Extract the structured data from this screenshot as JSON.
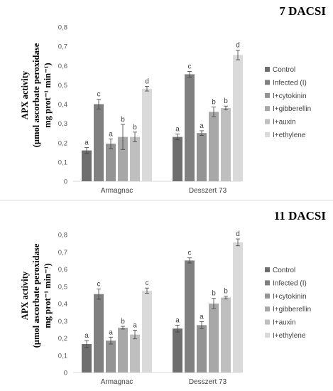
{
  "chart_data": [
    {
      "type": "bar",
      "title": "7 DACSI",
      "ylabel": [
        "APX activity",
        "(µmol ascorbate peroxidase",
        "mg prot⁻¹ min⁻¹)"
      ],
      "yticks": [
        "0",
        "0,1",
        "0,2",
        "0,3",
        "0,4",
        "0,5",
        "0,6",
        "0,7",
        "0,8"
      ],
      "ylim": [
        0,
        0.8
      ],
      "grid": false,
      "legend_position": "right",
      "categories": [
        "Armagnac",
        "Desszert 73"
      ],
      "series": [
        {
          "name": "Control",
          "color": "#6e6e6e",
          "values": [
            0.16,
            0.23
          ],
          "errors": [
            0.015,
            0.015
          ],
          "labels": [
            "a",
            "a"
          ]
        },
        {
          "name": "Infected (I)",
          "color": "#808080",
          "values": [
            0.4,
            0.555
          ],
          "errors": [
            0.025,
            0.015
          ],
          "labels": [
            "c",
            "c"
          ]
        },
        {
          "name": "I+cytokinin",
          "color": "#949494",
          "values": [
            0.195,
            0.25
          ],
          "errors": [
            0.025,
            0.012
          ],
          "labels": [
            "a",
            "a"
          ]
        },
        {
          "name": "I+gibberellin",
          "color": "#a8a8a8",
          "values": [
            0.23,
            0.36
          ],
          "errors": [
            0.065,
            0.025
          ],
          "labels": [
            "b",
            "b"
          ]
        },
        {
          "name": "I+auxin",
          "color": "#bfbfbf",
          "values": [
            0.23,
            0.38
          ],
          "errors": [
            0.025,
            0.01
          ],
          "labels": [
            "b",
            "b"
          ]
        },
        {
          "name": "I+ethylene",
          "color": "#dadada",
          "values": [
            0.48,
            0.655
          ],
          "errors": [
            0.012,
            0.025
          ],
          "labels": [
            "d",
            "d"
          ]
        }
      ]
    },
    {
      "type": "bar",
      "title": "11 DACSI",
      "ylabel": [
        "APX activity",
        "(µmol ascorbate peroxidase",
        "mg prot⁻¹ min⁻¹)"
      ],
      "yticks": [
        "0",
        "0,1",
        "0,2",
        "0,3",
        "0,4",
        "0,5",
        "0,6",
        "0,7",
        "0,8"
      ],
      "ylim": [
        0,
        0.8
      ],
      "grid": false,
      "legend_position": "right",
      "categories": [
        "Armagnac",
        "Desszert 73"
      ],
      "series": [
        {
          "name": "Control",
          "color": "#6e6e6e",
          "values": [
            0.165,
            0.255
          ],
          "errors": [
            0.02,
            0.02
          ],
          "labels": [
            "a",
            "a"
          ]
        },
        {
          "name": "Infected (I)",
          "color": "#808080",
          "values": [
            0.455,
            0.65
          ],
          "errors": [
            0.03,
            0.015
          ],
          "labels": [
            "c",
            "c"
          ]
        },
        {
          "name": "I+cytokinin",
          "color": "#949494",
          "values": [
            0.185,
            0.275
          ],
          "errors": [
            0.02,
            0.02
          ],
          "labels": [
            "a",
            "a"
          ]
        },
        {
          "name": "I+gibberellin",
          "color": "#a8a8a8",
          "values": [
            0.26,
            0.4
          ],
          "errors": [
            0.008,
            0.03
          ],
          "labels": [
            "b",
            "b"
          ]
        },
        {
          "name": "I+auxin",
          "color": "#bfbfbf",
          "values": [
            0.22,
            0.435
          ],
          "errors": [
            0.025,
            0.008
          ],
          "labels": [
            "a",
            "b"
          ]
        },
        {
          "name": "I+ethylene",
          "color": "#dadada",
          "values": [
            0.475,
            0.755
          ],
          "errors": [
            0.015,
            0.02
          ],
          "labels": [
            "c",
            "d"
          ]
        }
      ]
    }
  ]
}
